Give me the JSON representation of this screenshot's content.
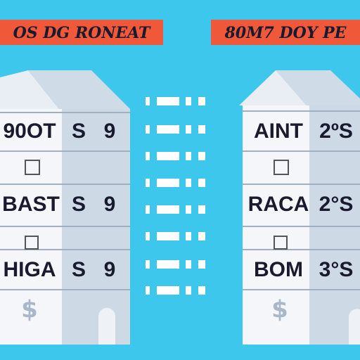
{
  "left": {
    "banner": "OS DG RONEAT",
    "rows": [
      [
        "90OT",
        "S",
        "9"
      ],
      [
        "BAST",
        "S",
        "9"
      ],
      [
        "HIGA",
        "S",
        "9"
      ]
    ],
    "symbol": "$"
  },
  "right": {
    "banner": "80M7 DOY PE",
    "rows": [
      [
        "AINT",
        "2ºS"
      ],
      [
        "RACA",
        "2°S"
      ],
      [
        "BOM",
        "3°S"
      ]
    ],
    "symbol": "$"
  }
}
